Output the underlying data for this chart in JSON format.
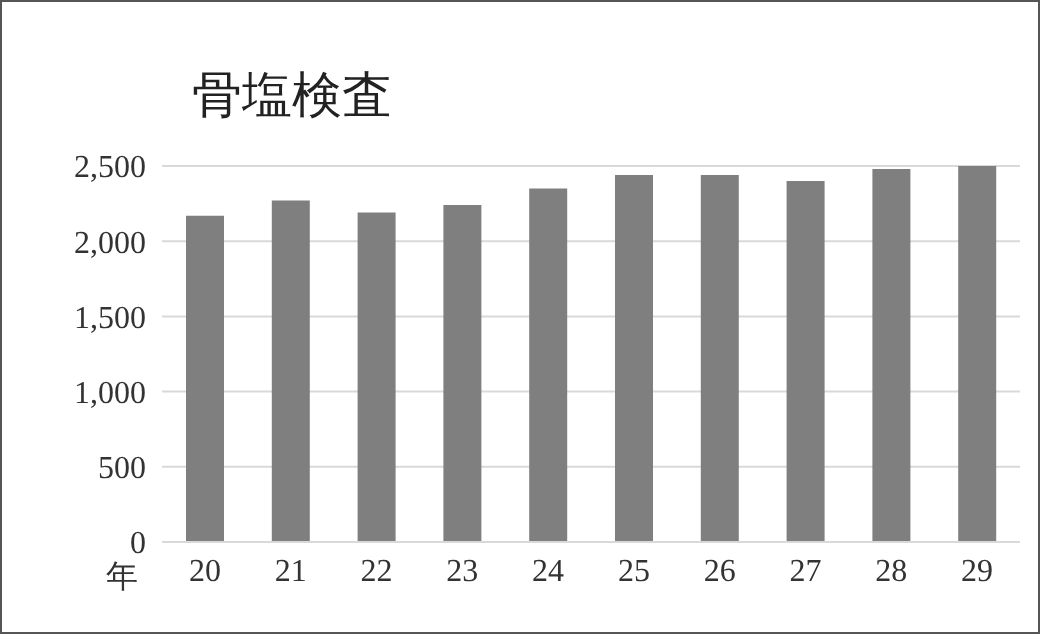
{
  "chart_data": {
    "type": "bar",
    "title": "骨塩検査",
    "xlabel": "年",
    "categories": [
      "20",
      "21",
      "22",
      "23",
      "24",
      "25",
      "26",
      "27",
      "28",
      "29"
    ],
    "values": [
      2170,
      2270,
      2190,
      2240,
      2350,
      2440,
      2440,
      2400,
      2480,
      2500
    ],
    "color": "#7f7f7f",
    "ylim": [
      0,
      2500
    ],
    "yticks": [
      0,
      500,
      {
        "value": 1000,
        "label": "1,000"
      },
      {
        "value": 1500,
        "label": "1,500"
      },
      {
        "value": 2000,
        "label": "2,000"
      },
      {
        "value": 2500,
        "label": "2,500"
      }
    ],
    "grid": "y"
  }
}
